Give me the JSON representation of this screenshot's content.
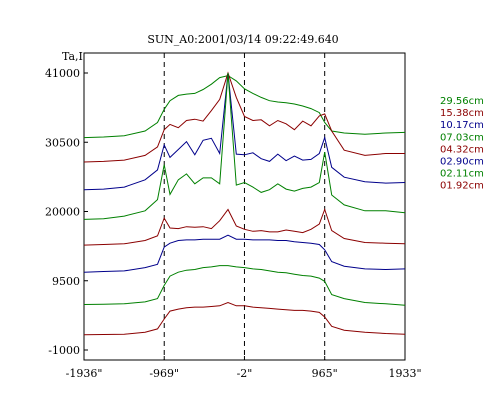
{
  "chart_data": {
    "type": "line",
    "title": "SUN_A0:2001/03/14 09:22:49.640",
    "ylabel": "Ta,I",
    "xlabel": "",
    "xlim": [
      -1936,
      1933
    ],
    "ylim": [
      -1000,
      41000
    ],
    "x_ticks": [
      {
        "value": -1936,
        "label": "-1936\""
      },
      {
        "value": -969,
        "label": "-969\""
      },
      {
        "value": -2,
        "label": "-2\""
      },
      {
        "value": 965,
        "label": "965\""
      },
      {
        "value": 1933,
        "label": "1933\""
      }
    ],
    "y_ticks": [
      {
        "value": 41000,
        "label": "41000"
      },
      {
        "value": 30500,
        "label": "30500"
      },
      {
        "value": 20000,
        "label": "20000"
      },
      {
        "value": 9500,
        "label": "9500"
      },
      {
        "value": -1000,
        "label": "-1000"
      }
    ],
    "vlines": [
      -969,
      -2,
      965
    ],
    "x": [
      -1936,
      -1700,
      -1450,
      -1200,
      -1050,
      -969,
      -900,
      -800,
      -700,
      -600,
      -500,
      -400,
      -300,
      -200,
      -100,
      -2,
      100,
      200,
      300,
      400,
      500,
      600,
      700,
      800,
      900,
      965,
      1050,
      1200,
      1450,
      1700,
      1933
    ],
    "series": [
      {
        "name": "29.56cm",
        "color": "#008000",
        "values": [
          31200,
          31300,
          31500,
          32200,
          33500,
          35500,
          36800,
          37600,
          37800,
          37900,
          38500,
          39300,
          40300,
          40600,
          39800,
          38600,
          37900,
          37300,
          36800,
          36600,
          36500,
          36300,
          36000,
          35600,
          35000,
          33500,
          32200,
          31900,
          31700,
          31900,
          32000
        ]
      },
      {
        "name": "15.38cm",
        "color": "#8b0000",
        "values": [
          27500,
          27600,
          27800,
          28500,
          29800,
          32400,
          33200,
          32700,
          33800,
          34000,
          33700,
          35300,
          37000,
          41000,
          37300,
          34400,
          33800,
          33900,
          33000,
          33800,
          33300,
          32400,
          33700,
          33000,
          34500,
          34800,
          32200,
          29300,
          28500,
          28800,
          28800
        ]
      },
      {
        "name": "10.17cm",
        "color": "#00008b",
        "values": [
          23300,
          23400,
          23700,
          24800,
          26300,
          30100,
          28200,
          29400,
          30600,
          28600,
          30800,
          31100,
          28800,
          41000,
          28700,
          28600,
          28900,
          28000,
          27600,
          28700,
          27700,
          28400,
          27800,
          27900,
          28800,
          31200,
          26700,
          25200,
          24500,
          24300,
          24400
        ]
      },
      {
        "name": "07.03cm",
        "color": "#008000",
        "values": [
          18800,
          18900,
          19300,
          20100,
          21800,
          27100,
          22600,
          24800,
          25700,
          24200,
          25100,
          25100,
          24200,
          41000,
          24000,
          24400,
          23700,
          22900,
          23300,
          24200,
          23400,
          23100,
          23500,
          23700,
          24400,
          29000,
          22500,
          21000,
          20100,
          20100,
          19800
        ]
      },
      {
        "name": "04.32cm",
        "color": "#8b0000",
        "values": [
          14900,
          15000,
          15100,
          15600,
          16300,
          19000,
          17500,
          17400,
          17700,
          17600,
          17700,
          17400,
          18600,
          20300,
          17800,
          17300,
          17000,
          17100,
          16900,
          16900,
          17200,
          17000,
          16800,
          17300,
          18100,
          20300,
          17100,
          15900,
          15300,
          15200,
          15100
        ]
      },
      {
        "name": "02.90cm",
        "color": "#00008b",
        "values": [
          10800,
          10900,
          11000,
          11500,
          12000,
          14600,
          15200,
          15600,
          15700,
          15700,
          15800,
          15800,
          15800,
          16400,
          15800,
          15800,
          15700,
          15700,
          15700,
          15600,
          15600,
          15400,
          15300,
          15200,
          15000,
          14200,
          12400,
          11700,
          11300,
          11200,
          11300
        ]
      },
      {
        "name": "02.11cm",
        "color": "#008000",
        "values": [
          5900,
          5950,
          6000,
          6300,
          6800,
          8800,
          10200,
          10800,
          11100,
          11200,
          11500,
          11600,
          11800,
          11800,
          11600,
          11500,
          11300,
          11200,
          11000,
          10800,
          10700,
          10500,
          10300,
          10200,
          9900,
          9400,
          7400,
          6800,
          6200,
          6000,
          5800
        ]
      },
      {
        "name": "01.92cm",
        "color": "#8b0000",
        "values": [
          1300,
          1350,
          1400,
          1700,
          2200,
          3700,
          4900,
          5200,
          5400,
          5500,
          5500,
          5600,
          5700,
          6200,
          5700,
          5700,
          5500,
          5400,
          5300,
          5200,
          5100,
          5000,
          5000,
          4900,
          4700,
          4000,
          2600,
          2000,
          1700,
          1500,
          1400
        ]
      }
    ]
  }
}
